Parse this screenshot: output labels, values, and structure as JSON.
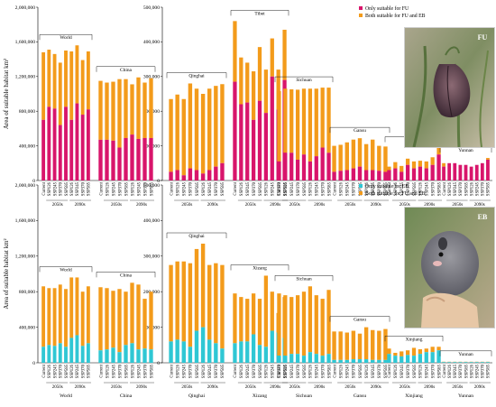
{
  "chart_data": [
    {
      "type": "bar",
      "stacked": true,
      "ylabel": "Area of suitable habitat km²",
      "legend": {
        "placement": "top-right",
        "entries": [
          "Only suitable for FU",
          "Both suitable for FU and EB"
        ],
        "colors": [
          "#d8156b",
          "#f39b1b"
        ]
      },
      "left_axis": {
        "ylim": [
          0,
          2000000
        ],
        "ticks": [
          "0",
          "400,000",
          "800,000",
          "1,200,000",
          "1,600,000",
          "2,000,000"
        ]
      },
      "right_axis": {
        "ylim": [
          0,
          500000
        ],
        "ticks": [
          "0",
          "100,000",
          "200,000",
          "300,000",
          "400,000",
          "500,000"
        ]
      },
      "groups": [
        {
          "region": "World",
          "axis": "left",
          "bottom": [
            700000,
            850000,
            830000,
            640000,
            850000,
            700000,
            890000,
            760000,
            820000
          ],
          "top": [
            1480000,
            1510000,
            1460000,
            1360000,
            1500000,
            1490000,
            1560000,
            1390000,
            1490000
          ]
        },
        {
          "region": "China",
          "axis": "left",
          "bottom": [
            470000,
            470000,
            460000,
            380000,
            490000,
            530000,
            480000,
            490000,
            490000
          ],
          "top": [
            1150000,
            1130000,
            1140000,
            1170000,
            1170000,
            1110000,
            1190000,
            1130000,
            1180000
          ]
        },
        {
          "region": "Qinghai",
          "axis": "right",
          "bottom": [
            25000,
            30000,
            15000,
            35000,
            30000,
            20000,
            30000,
            40000,
            50000
          ],
          "top": [
            235000,
            248000,
            235000,
            280000,
            265000,
            250000,
            265000,
            273000,
            278000
          ]
        },
        {
          "region": "Tibet",
          "axis": "right",
          "bottom": [
            285000,
            220000,
            225000,
            175000,
            230000,
            195000,
            300000,
            205000,
            290000
          ],
          "top": [
            460000,
            355000,
            340000,
            315000,
            385000,
            320000,
            410000,
            320000,
            435000
          ]
        },
        {
          "region": "Sichuan",
          "axis": "right",
          "bottom": [
            55000,
            80000,
            80000,
            60000,
            75000,
            55000,
            70000,
            95000,
            80000
          ],
          "top": [
            258000,
            265000,
            263000,
            262000,
            265000,
            265000,
            265000,
            268000,
            268000
          ]
        },
        {
          "region": "Gansu",
          "axis": "right",
          "bottom": [
            25000,
            28000,
            30000,
            35000,
            40000,
            30000,
            30000,
            28000,
            25000
          ],
          "top": [
            100000,
            103000,
            110000,
            118000,
            122000,
            105000,
            118000,
            100000,
            98000
          ]
        },
        {
          "region": "Xinjiang",
          "axis": "right",
          "bottom": [
            30000,
            35000,
            25000,
            45000,
            35000,
            40000,
            35000,
            45000,
            75000
          ],
          "top": [
            40000,
            53000,
            42000,
            63000,
            55000,
            57000,
            55000,
            67000,
            95000
          ]
        },
        {
          "region": "Yunnan",
          "axis": "right",
          "bottom": [
            40000,
            50000,
            50000,
            45000,
            45000,
            40000,
            45000,
            50000,
            60000
          ],
          "top": [
            50000,
            50000,
            50000,
            45000,
            45000,
            40000,
            45000,
            50000,
            65000
          ]
        }
      ]
    },
    {
      "type": "bar",
      "stacked": true,
      "ylabel": "Area of suitable habitat km²",
      "legend": {
        "placement": "top-right",
        "entries": [
          "Only suitable for EB",
          "Both suitable for FU and EB"
        ],
        "colors": [
          "#2fc7d4",
          "#f39b1b"
        ]
      },
      "left_axis": {
        "ylim": [
          0,
          2000000
        ],
        "ticks": [
          "0",
          "400,000",
          "800,000",
          "1,200,000",
          "1,600,000",
          "2,000,000"
        ]
      },
      "right_axis": {
        "ylim": [
          0,
          500000
        ],
        "ticks": [
          "0",
          "100,000",
          "200,000",
          "300,000",
          "400,000",
          "500,000"
        ]
      },
      "groups": [
        {
          "region": "World",
          "axis": "left",
          "bottom": [
            180000,
            200000,
            190000,
            220000,
            180000,
            280000,
            310000,
            190000,
            220000
          ],
          "top": [
            860000,
            840000,
            840000,
            880000,
            830000,
            960000,
            960000,
            800000,
            860000
          ]
        },
        {
          "region": "China",
          "axis": "left",
          "bottom": [
            140000,
            150000,
            170000,
            120000,
            200000,
            220000,
            150000,
            160000,
            150000
          ],
          "top": [
            850000,
            840000,
            810000,
            830000,
            800000,
            900000,
            880000,
            720000,
            800000
          ]
        },
        {
          "region": "Qinghai",
          "axis": "right",
          "bottom": [
            60000,
            65000,
            60000,
            45000,
            90000,
            100000,
            65000,
            55000,
            40000
          ],
          "top": [
            275000,
            285000,
            285000,
            280000,
            320000,
            335000,
            275000,
            280000,
            275000
          ]
        },
        {
          "region": "Xizang",
          "axis": "right",
          "bottom": [
            55000,
            60000,
            60000,
            80000,
            50000,
            45000,
            90000,
            85000,
            70000
          ],
          "top": [
            195000,
            185000,
            180000,
            195000,
            180000,
            245000,
            200000,
            140000,
            185000
          ]
        },
        {
          "region": "Sichuan",
          "axis": "right",
          "bottom": [
            20000,
            20000,
            25000,
            25000,
            20000,
            30000,
            25000,
            20000,
            25000
          ],
          "top": [
            195000,
            190000,
            185000,
            190000,
            200000,
            215000,
            190000,
            180000,
            205000
          ]
        },
        {
          "region": "Gansu",
          "axis": "right",
          "bottom": [
            8000,
            8000,
            8000,
            10000,
            10000,
            10000,
            8000,
            8000,
            8000
          ],
          "top": [
            88000,
            88000,
            85000,
            90000,
            82000,
            100000,
            92000,
            90000,
            95000
          ]
        },
        {
          "region": "Xinjiang",
          "axis": "right",
          "bottom": [
            25000,
            20000,
            18000,
            22000,
            20000,
            25000,
            30000,
            30000,
            35000
          ],
          "top": [
            40000,
            28000,
            32000,
            35000,
            42000,
            38000,
            40000,
            45000,
            45000
          ]
        },
        {
          "region": "Yunnan",
          "axis": "right",
          "bottom": [
            2000,
            2000,
            2000,
            2000,
            2000,
            2000,
            2000,
            2000,
            2000
          ],
          "top": [
            3000,
            3000,
            3000,
            3000,
            3000,
            3000,
            3000,
            3000,
            3000
          ]
        }
      ]
    }
  ],
  "x_tick_labels": [
    "Current",
    "SSP126",
    "SSP245",
    "SSP370",
    "SSP585",
    "SSP126",
    "SSP245",
    "SSP370",
    "SSP585"
  ],
  "group_bracket_labels": {
    "period_2050": "2050s",
    "period_2090": "2090s"
  },
  "bottom_region_labels": [
    "World",
    "China",
    "Qinghai",
    "Xizang",
    "Sichuan",
    "Gansu",
    "Xinjiang",
    "Yunnan"
  ],
  "photo_tags": {
    "top": "FU",
    "bottom": "EB"
  }
}
